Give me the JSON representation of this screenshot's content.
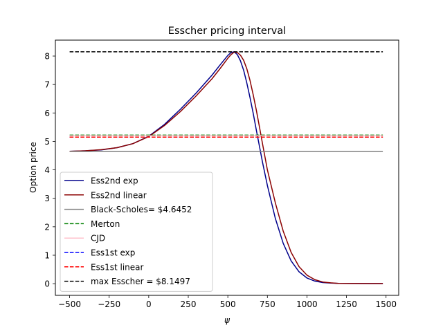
{
  "chart_data": {
    "type": "line",
    "title": "Esscher pricing interval",
    "xlabel": "ψ",
    "ylabel": "Option price",
    "xlim": [
      -590,
      1580
    ],
    "ylim": [
      -0.41,
      8.56
    ],
    "xticks": [
      -500,
      -250,
      0,
      250,
      500,
      750,
      1000,
      1250,
      1500
    ],
    "xtick_labels": [
      "−500",
      "−250",
      "0",
      "250",
      "500",
      "750",
      "1000",
      "1250",
      "1500"
    ],
    "yticks": [
      0,
      1,
      2,
      3,
      4,
      5,
      6,
      7,
      8
    ],
    "ytick_labels": [
      "0",
      "1",
      "2",
      "3",
      "4",
      "5",
      "6",
      "7",
      "8"
    ],
    "grid": false,
    "legend_position": "lower-left",
    "series": [
      {
        "name": "Ess2nd exp",
        "color": "#00008b",
        "style": "solid",
        "x": [
          -500,
          -400,
          -300,
          -200,
          -100,
          0,
          100,
          200,
          300,
          400,
          450,
          500,
          520,
          540,
          560,
          580,
          600,
          620,
          640,
          660,
          680,
          700,
          720,
          750,
          800,
          850,
          900,
          950,
          1000,
          1050,
          1100,
          1150,
          1200,
          1300,
          1400,
          1480
        ],
        "y": [
          4.65,
          4.67,
          4.7,
          4.78,
          4.92,
          5.18,
          5.6,
          6.13,
          6.7,
          7.33,
          7.68,
          8.02,
          8.12,
          8.15,
          8.05,
          7.83,
          7.5,
          7.05,
          6.55,
          6.0,
          5.4,
          4.82,
          4.25,
          3.45,
          2.3,
          1.42,
          0.8,
          0.42,
          0.2,
          0.09,
          0.04,
          0.02,
          0.01,
          0.005,
          0.003,
          0.003
        ]
      },
      {
        "name": "Ess2nd linear",
        "color": "#8b0000",
        "style": "solid",
        "x": [
          -500,
          -400,
          -300,
          -200,
          -100,
          0,
          100,
          200,
          300,
          400,
          450,
          500,
          520,
          540,
          560,
          580,
          600,
          620,
          640,
          660,
          680,
          700,
          720,
          750,
          800,
          850,
          900,
          950,
          1000,
          1050,
          1100,
          1150,
          1200,
          1300,
          1400,
          1480
        ],
        "y": [
          4.65,
          4.67,
          4.71,
          4.78,
          4.92,
          5.17,
          5.56,
          6.05,
          6.6,
          7.2,
          7.55,
          7.92,
          8.05,
          8.14,
          8.12,
          8.03,
          7.85,
          7.55,
          7.15,
          6.65,
          6.1,
          5.5,
          4.9,
          4.0,
          2.85,
          1.85,
          1.1,
          0.6,
          0.3,
          0.14,
          0.06,
          0.03,
          0.01,
          0.005,
          0.003,
          0.003
        ]
      },
      {
        "name": "Black-Scholes= $4.6452",
        "color": "#808080",
        "style": "solid",
        "x": [
          -500,
          1480
        ],
        "y": [
          4.6452,
          4.6452
        ]
      },
      {
        "name": "Merton",
        "color": "#008000",
        "style": "dashed",
        "x": [
          -500,
          1480
        ],
        "y": [
          5.22,
          5.22
        ]
      },
      {
        "name": "CJD",
        "color": "#ffc0cb",
        "style": "solid",
        "x": [
          -500,
          1480
        ],
        "y": [
          5.2,
          5.2
        ]
      },
      {
        "name": "Ess1st exp",
        "color": "#0000ff",
        "style": "dashed",
        "x": [
          -500,
          1480
        ],
        "y": [
          5.15,
          5.15
        ]
      },
      {
        "name": "Ess1st linear",
        "color": "#ff0000",
        "style": "dashed",
        "x": [
          -500,
          1480
        ],
        "y": [
          5.15,
          5.15
        ]
      },
      {
        "name": "max Esscher = $8.1497",
        "color": "#000000",
        "style": "dashed",
        "x": [
          -500,
          1480
        ],
        "y": [
          8.1497,
          8.1497
        ]
      }
    ]
  }
}
